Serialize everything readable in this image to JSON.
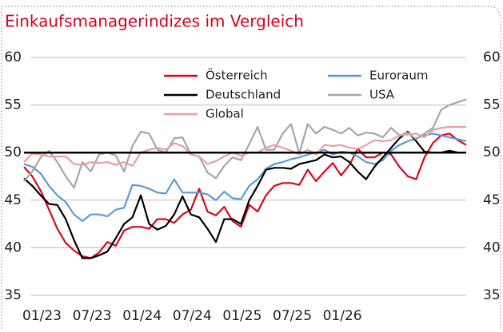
{
  "chart_data": {
    "type": "line",
    "title": "Einkaufsmanagerindizes im Vergleich",
    "categories": [
      "01/23",
      null,
      null,
      null,
      null,
      null,
      "07/23",
      null,
      null,
      null,
      null,
      null,
      "01/24",
      null,
      null,
      null,
      null,
      null,
      "07/24",
      null,
      null,
      null,
      null,
      null,
      "01/25",
      null,
      null,
      null,
      null,
      null,
      "07/25",
      null,
      null,
      null,
      null,
      null,
      "01/26",
      null,
      null,
      null,
      null,
      null,
      null,
      null,
      null,
      null,
      null,
      null,
      null,
      null,
      null,
      null,
      null,
      null
    ],
    "series": [
      {
        "name": "Österreich",
        "color": "#d7081f",
        "values": [
          48.5,
          47.5,
          46,
          44,
          42,
          40.5,
          39.7,
          39.1,
          38.9,
          39.5,
          40.6,
          40.2,
          41.8,
          42.2,
          42.2,
          42,
          43,
          43,
          42.6,
          43.5,
          44,
          46.2,
          43.8,
          43.4,
          44.3,
          42.8,
          42.2,
          44.5,
          43.8,
          45.5,
          46.5,
          46.8,
          46.8,
          46.6,
          48.2,
          47,
          48,
          48.9,
          47.6,
          48.7,
          50.4,
          49.5,
          49.5,
          50,
          49.8,
          48.5,
          47.5,
          47.2,
          49.5,
          51,
          51.8,
          52,
          51.3,
          50.8
        ]
      },
      {
        "name": "Euroraum",
        "color": "#5b9bd5",
        "values": [
          48.8,
          48.5,
          47.8,
          46.5,
          45.5,
          44.8,
          43.5,
          42.8,
          43.5,
          43.5,
          43.3,
          44,
          44.2,
          46.6,
          46.5,
          46.2,
          45.8,
          45.7,
          47.2,
          45.8,
          45.8,
          45.8,
          45.6,
          45,
          45.9,
          45.2,
          45.1,
          46.5,
          47.2,
          48.3,
          48.8,
          49,
          49.3,
          49.5,
          49.8,
          50,
          50.3,
          49.8,
          50.1,
          50,
          49.6,
          49,
          48.8,
          49.2,
          50.2,
          50.8,
          51.2,
          51.5,
          51.8,
          52,
          51.8,
          51.6,
          51.4,
          51.2
        ]
      },
      {
        "name": "Deutschland",
        "color": "#000000",
        "values": [
          47.3,
          46.5,
          45.5,
          44.6,
          44.5,
          43,
          40.8,
          38.9,
          38.9,
          39.2,
          39.6,
          41,
          42.5,
          43.2,
          45.5,
          42.5,
          41.9,
          42.3,
          43.5,
          45.4,
          43.5,
          43.2,
          42,
          40.6,
          43,
          43,
          42.5,
          45,
          46.5,
          48.2,
          48.4,
          48.4,
          48.3,
          48.8,
          49,
          49.2,
          49.8,
          49.5,
          49.6,
          49,
          48,
          47.2,
          48.5,
          49.5,
          50.5,
          51.5,
          52.2,
          51.2,
          50.1,
          50,
          50,
          50.2,
          50,
          50
        ]
      },
      {
        "name": "USA",
        "color": "#a6a6a6",
        "values": [
          47,
          48,
          49.5,
          50.2,
          49,
          47.5,
          46.3,
          49,
          48,
          49.8,
          50,
          49.7,
          48,
          50.7,
          52.2,
          52,
          50.3,
          50,
          51.5,
          51.6,
          49.8,
          49.6,
          47.9,
          47.3,
          48.6,
          49.5,
          49.2,
          50.9,
          52.7,
          50.3,
          50.3,
          52,
          53,
          49.9,
          53,
          52,
          52.7,
          52.4,
          52,
          52.6,
          51.8,
          52.1,
          52,
          51.6,
          52.6,
          51.8,
          52.1,
          51.4,
          52,
          52.6,
          54.5,
          55,
          55.3,
          55.6
        ]
      },
      {
        "name": "Global",
        "color": "#e8a0a0",
        "values": [
          49,
          49.9,
          49.8,
          49.6,
          49.6,
          49.6,
          48.8,
          48.7,
          49,
          48.9,
          49,
          48.7,
          49,
          48.6,
          50,
          50.3,
          50.5,
          50.3,
          51,
          50.7,
          49.8,
          49.6,
          48.8,
          49.1,
          49.6,
          50,
          49.7,
          50,
          50,
          50.5,
          50.8,
          50.5,
          50.2,
          49.8,
          50.3,
          49.8,
          50.8,
          50.7,
          50.8,
          50.5,
          50.4,
          50.8,
          51.3,
          51.2,
          51.3,
          51.8,
          51.9,
          52,
          51.6,
          52.4,
          52.6,
          52.7,
          52.7,
          52.7
        ]
      }
    ],
    "reference_line": 50,
    "ylim": [
      35,
      60
    ],
    "yticks": [
      35,
      40,
      45,
      50,
      55,
      60
    ],
    "grid": true
  }
}
